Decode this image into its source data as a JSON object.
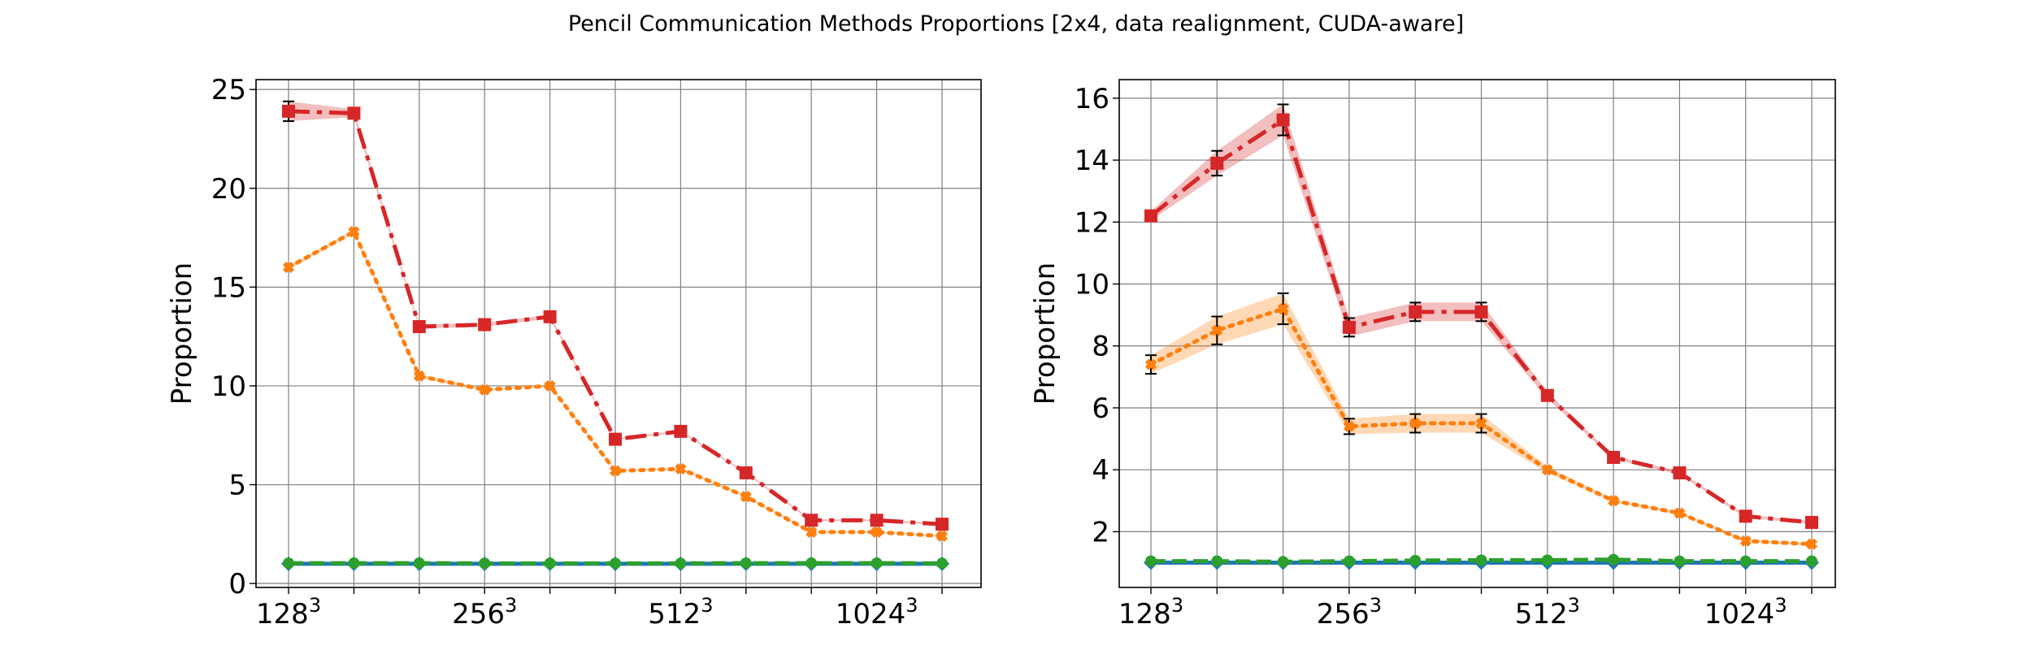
{
  "figure": {
    "title": "Pencil Communication Methods Proportions [2x4, data realignment, CUDA-aware]"
  },
  "colors": {
    "red": "#d62728",
    "orange": "#ff7f0e",
    "green": "#2ca02c",
    "blue": "#1f77b4",
    "grid": "#808080"
  },
  "chart_data": [
    {
      "type": "line",
      "ylabel": "Proportion",
      "ylim": [
        -0.2,
        25.5
      ],
      "yticks": [
        0,
        5,
        10,
        15,
        20,
        25
      ],
      "x_tick_labels": [
        {
          "base": "128",
          "exp": "3",
          "index": 0
        },
        {
          "base": "256",
          "exp": "3",
          "index": 3
        },
        {
          "base": "512",
          "exp": "3",
          "index": 6
        },
        {
          "base": "1024",
          "exp": "3",
          "index": 9
        }
      ],
      "grid": true,
      "series": [
        {
          "style": "dashdot",
          "color": "red",
          "marker": "square",
          "values": [
            23.9,
            23.8,
            13.0,
            13.1,
            13.5,
            7.3,
            7.7,
            5.6,
            3.2,
            3.2,
            3.0
          ],
          "err": [
            0.5,
            0.2,
            0.1,
            0.1,
            0.1,
            0.05,
            0.05,
            0.05,
            0.05,
            0.05,
            0.05
          ]
        },
        {
          "style": "dotted",
          "color": "orange",
          "marker": "cross",
          "values": [
            16.0,
            17.8,
            10.5,
            9.8,
            10.0,
            5.7,
            5.8,
            4.4,
            2.6,
            2.6,
            2.4
          ],
          "err": [
            0.1,
            0.1,
            0.1,
            0.05,
            0.05,
            0.05,
            0.05,
            0.05,
            0.05,
            0.05,
            0.05
          ]
        },
        {
          "style": "dashed",
          "color": "green",
          "marker": "circle",
          "values": [
            1.03,
            1.03,
            1.03,
            1.02,
            1.02,
            1.02,
            1.02,
            1.03,
            1.03,
            1.03,
            1.02
          ],
          "err": [
            0,
            0,
            0,
            0,
            0,
            0,
            0,
            0,
            0,
            0,
            0
          ]
        },
        {
          "style": "solid",
          "color": "blue",
          "marker": "diamond",
          "values": [
            1.0,
            1.0,
            1.0,
            1.0,
            1.0,
            1.0,
            1.0,
            1.0,
            1.0,
            1.0,
            1.0
          ],
          "err": [
            0,
            0,
            0,
            0,
            0,
            0,
            0,
            0,
            0,
            0,
            0
          ]
        }
      ]
    },
    {
      "type": "line",
      "ylabel": "Proportion",
      "ylim": [
        0.2,
        16.6
      ],
      "yticks": [
        2,
        4,
        6,
        8,
        10,
        12,
        14,
        16
      ],
      "x_tick_labels": [
        {
          "base": "128",
          "exp": "3",
          "index": 0
        },
        {
          "base": "256",
          "exp": "3",
          "index": 3
        },
        {
          "base": "512",
          "exp": "3",
          "index": 6
        },
        {
          "base": "1024",
          "exp": "3",
          "index": 9
        }
      ],
      "grid": true,
      "series": [
        {
          "style": "dashdot",
          "color": "red",
          "marker": "square",
          "values": [
            12.2,
            13.9,
            15.3,
            8.6,
            9.1,
            9.1,
            6.4,
            4.4,
            3.9,
            2.5,
            2.3
          ],
          "err": [
            0.15,
            0.4,
            0.5,
            0.3,
            0.3,
            0.3,
            0.1,
            0.05,
            0.05,
            0.05,
            0.05
          ]
        },
        {
          "style": "dotted",
          "color": "orange",
          "marker": "cross",
          "values": [
            7.4,
            8.5,
            9.2,
            5.4,
            5.5,
            5.5,
            4.0,
            3.0,
            2.6,
            1.7,
            1.6
          ],
          "err": [
            0.3,
            0.45,
            0.5,
            0.25,
            0.3,
            0.3,
            0.1,
            0.05,
            0.05,
            0.05,
            0.05
          ]
        },
        {
          "style": "dashed",
          "color": "green",
          "marker": "circle",
          "values": [
            1.05,
            1.05,
            1.03,
            1.05,
            1.07,
            1.08,
            1.08,
            1.1,
            1.05,
            1.05,
            1.05
          ],
          "err": [
            0,
            0,
            0,
            0,
            0,
            0,
            0,
            0,
            0,
            0,
            0
          ]
        },
        {
          "style": "solid",
          "color": "blue",
          "marker": "diamond",
          "values": [
            1.0,
            1.0,
            1.0,
            1.0,
            1.0,
            1.0,
            1.0,
            1.0,
            1.0,
            1.0,
            1.0
          ],
          "err": [
            0,
            0,
            0,
            0,
            0,
            0,
            0,
            0,
            0,
            0,
            0
          ]
        }
      ]
    }
  ]
}
